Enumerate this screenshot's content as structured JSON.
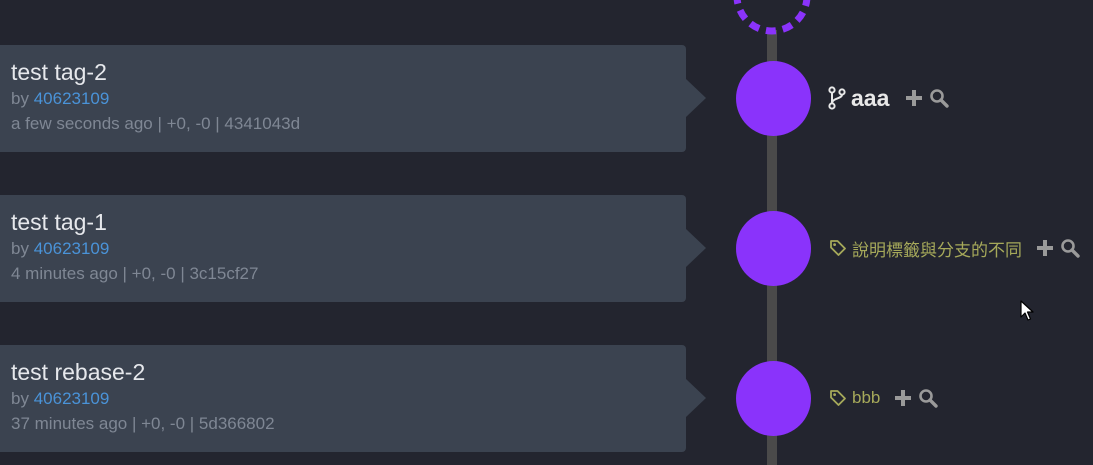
{
  "commits": [
    {
      "title": "test tag-2",
      "by_prefix": "by",
      "author": "40623109",
      "meta": "a few seconds ago | +0, -0 | 4341043d",
      "ref": {
        "type": "branch",
        "label": "aaa",
        "icon": "branch-icon"
      }
    },
    {
      "title": "test tag-1",
      "by_prefix": "by",
      "author": "40623109",
      "meta": "4 minutes ago | +0, -0 | 3c15cf27",
      "ref": {
        "type": "tag",
        "label": "說明標籤與分支的不同",
        "icon": "tag-icon"
      }
    },
    {
      "title": "test rebase-2",
      "by_prefix": "by",
      "author": "40623109",
      "meta": "37 minutes ago | +0, -0 | 5d366802",
      "ref": {
        "type": "tag",
        "label": "bbb",
        "icon": "tag-icon"
      }
    }
  ],
  "actions": {
    "add_icon": "plus-icon",
    "search_icon": "search-icon"
  },
  "colors": {
    "background": "#23252f",
    "card": "#3b4350",
    "node": "#8a33fb",
    "author_link": "#4a93d8",
    "tag_text": "#a6a95a",
    "branch_text": "#e8e8e8"
  }
}
